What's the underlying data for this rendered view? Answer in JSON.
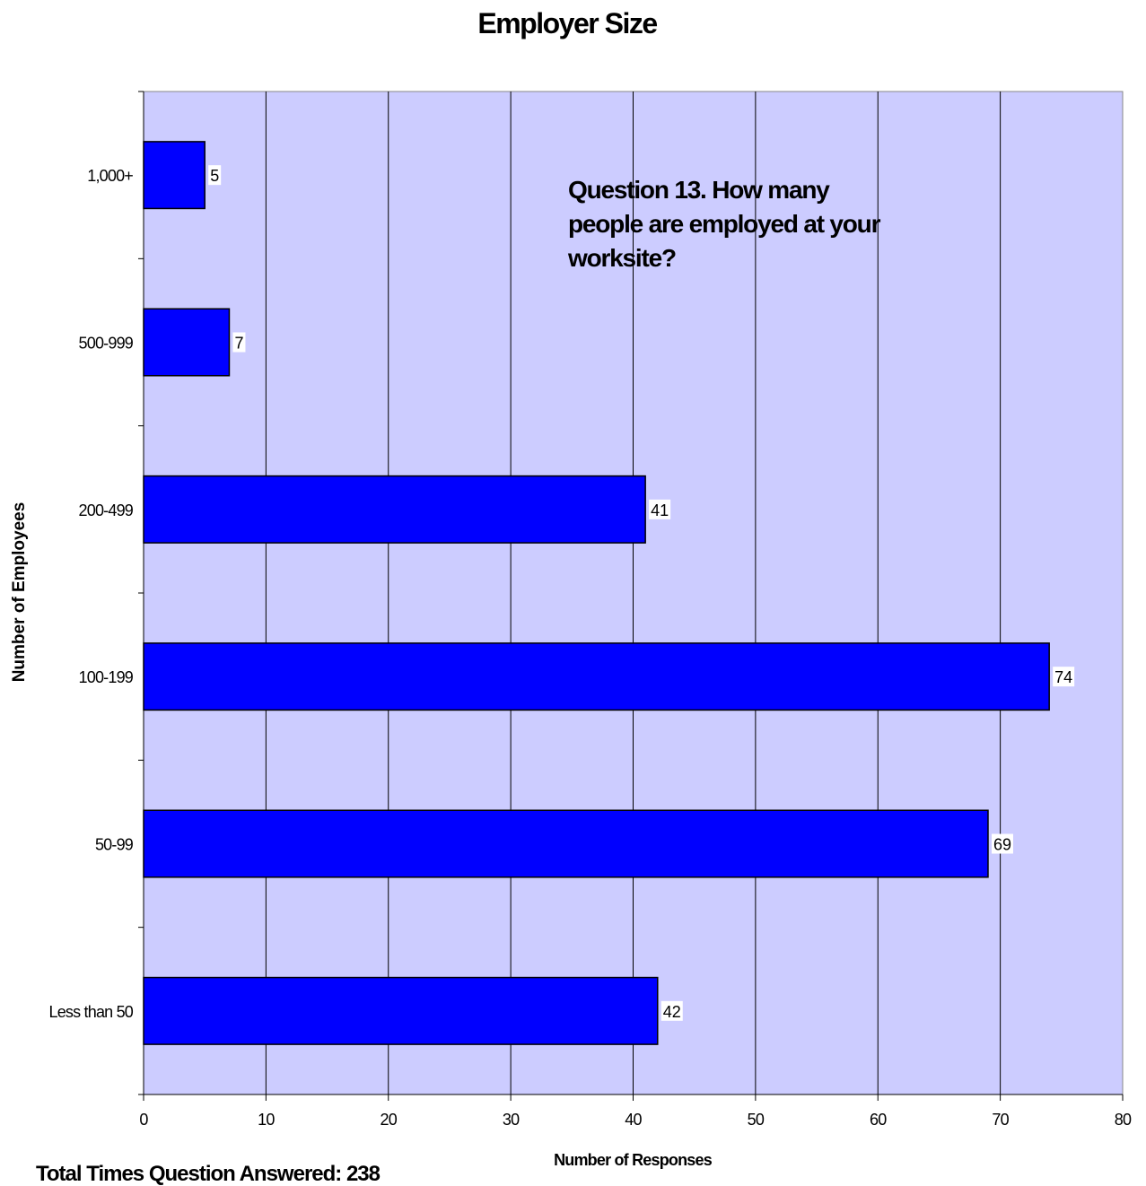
{
  "chart_data": {
    "type": "bar",
    "orientation": "horizontal",
    "title": "Employer Size",
    "xlabel": "Number of Responses",
    "ylabel": "Number of Employees",
    "categories": [
      "1,000+",
      "500-999",
      "200-499",
      "100-199",
      "50-99",
      "Less than 50"
    ],
    "values": [
      5,
      7,
      41,
      74,
      69,
      42
    ],
    "xlim": [
      0,
      80
    ],
    "xticks": [
      "0",
      "10",
      "20",
      "30",
      "40",
      "50",
      "60",
      "70",
      "80"
    ],
    "grid": "vertical",
    "annotation": [
      "Question 13.  How many",
      "people are employed at your",
      "worksite?"
    ],
    "colors": {
      "bar": "#0000ff",
      "plot_background": "#ccccff",
      "gridline": "#000000"
    }
  },
  "footer": {
    "text": "Total Times Question Answered:  238"
  }
}
